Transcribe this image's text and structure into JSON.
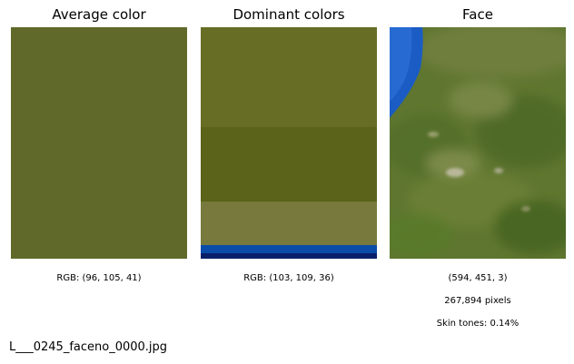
{
  "average": {
    "title": "Average color",
    "rgb_label": "RGB: (96, 105, 41)",
    "color": "#606929"
  },
  "dominant": {
    "title": "Dominant colors",
    "rgb_label": "RGB: (103, 109, 36)",
    "colors": [
      {
        "hex": "#676d24",
        "share": 0.43
      },
      {
        "hex": "#5a6319",
        "share": 0.32
      },
      {
        "hex": "#777a3c",
        "share": 0.19
      },
      {
        "hex": "#0a4ca8",
        "share": 0.035
      },
      {
        "hex": "#0a1f6a",
        "share": 0.025
      }
    ]
  },
  "face": {
    "title": "Face",
    "dimensions": "(594, 451, 3)",
    "pixels": "267,894 pixels",
    "skin_tones": "Skin tones: 0.14%"
  },
  "filename": "L___0245_faceno_0000.jpg"
}
